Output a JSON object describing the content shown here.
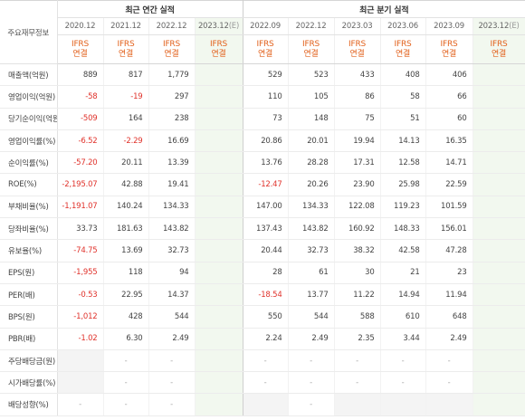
{
  "header": {
    "corner_label": "주요재무정보",
    "annual_group": "최근 연간 실적",
    "quarter_group": "최근 분기 실적",
    "basis_line1": "IFRS",
    "basis_line2": "연결",
    "annual_periods": [
      {
        "label": "2020.12",
        "est": ""
      },
      {
        "label": "2021.12",
        "est": ""
      },
      {
        "label": "2022.12",
        "est": ""
      },
      {
        "label": "2023.12",
        "est": "(E)"
      }
    ],
    "quarter_periods": [
      {
        "label": "2022.09",
        "est": ""
      },
      {
        "label": "2022.12",
        "est": ""
      },
      {
        "label": "2023.03",
        "est": ""
      },
      {
        "label": "2023.06",
        "est": ""
      },
      {
        "label": "2023.09",
        "est": ""
      },
      {
        "label": "2023.12",
        "est": "(E)"
      }
    ]
  },
  "rows": [
    {
      "label": "매출액(억원)",
      "annual": [
        "889",
        "817",
        "1,779",
        ""
      ],
      "quarter": [
        "529",
        "523",
        "433",
        "408",
        "406",
        ""
      ]
    },
    {
      "label": "영업이익(억원)",
      "annual": [
        "-58",
        "-19",
        "297",
        ""
      ],
      "quarter": [
        "110",
        "105",
        "86",
        "58",
        "66",
        ""
      ]
    },
    {
      "label": "당기순이익(억원)",
      "annual": [
        "-509",
        "164",
        "238",
        ""
      ],
      "quarter": [
        "73",
        "148",
        "75",
        "51",
        "60",
        ""
      ]
    },
    {
      "label": "영업이익률(%)",
      "annual": [
        "-6.52",
        "-2.29",
        "16.69",
        ""
      ],
      "quarter": [
        "20.86",
        "20.01",
        "19.94",
        "14.13",
        "16.35",
        ""
      ]
    },
    {
      "label": "순이익률(%)",
      "annual": [
        "-57.20",
        "20.11",
        "13.39",
        ""
      ],
      "quarter": [
        "13.76",
        "28.28",
        "17.31",
        "12.58",
        "14.71",
        ""
      ]
    },
    {
      "label": "ROE(%)",
      "annual": [
        "-2,195.07",
        "42.88",
        "19.41",
        ""
      ],
      "quarter": [
        "-12.47",
        "20.26",
        "23.90",
        "25.98",
        "22.59",
        ""
      ]
    },
    {
      "label": "부채비율(%)",
      "annual": [
        "-1,191.07",
        "140.24",
        "134.33",
        ""
      ],
      "quarter": [
        "147.00",
        "134.33",
        "122.08",
        "119.23",
        "101.59",
        ""
      ]
    },
    {
      "label": "당좌비율(%)",
      "annual": [
        "33.73",
        "181.63",
        "143.82",
        ""
      ],
      "quarter": [
        "137.43",
        "143.82",
        "160.92",
        "148.33",
        "156.01",
        ""
      ]
    },
    {
      "label": "유보율(%)",
      "annual": [
        "-74.75",
        "13.69",
        "32.73",
        ""
      ],
      "quarter": [
        "20.44",
        "32.73",
        "38.32",
        "42.58",
        "47.28",
        ""
      ]
    },
    {
      "label": "EPS(원)",
      "annual": [
        "-1,955",
        "118",
        "94",
        ""
      ],
      "quarter": [
        "28",
        "61",
        "30",
        "21",
        "23",
        ""
      ]
    },
    {
      "label": "PER(배)",
      "annual": [
        "-0.53",
        "22.95",
        "14.37",
        ""
      ],
      "quarter": [
        "-18.54",
        "13.77",
        "11.22",
        "14.94",
        "11.94",
        ""
      ]
    },
    {
      "label": "BPS(원)",
      "annual": [
        "-1,012",
        "428",
        "544",
        ""
      ],
      "quarter": [
        "550",
        "544",
        "588",
        "610",
        "648",
        ""
      ]
    },
    {
      "label": "PBR(배)",
      "annual": [
        "-1.02",
        "6.30",
        "2.49",
        ""
      ],
      "quarter": [
        "2.24",
        "2.49",
        "2.35",
        "3.44",
        "2.49",
        ""
      ]
    },
    {
      "label": "주당배당금(원)",
      "annual": [
        "",
        "-",
        "-",
        ""
      ],
      "quarter": [
        "-",
        "-",
        "-",
        "-",
        "-",
        ""
      ]
    },
    {
      "label": "시가배당률(%)",
      "annual": [
        "",
        "-",
        "-",
        ""
      ],
      "quarter": [
        "-",
        "-",
        "-",
        "-",
        "-",
        ""
      ]
    },
    {
      "label": "배당성향(%)",
      "annual": [
        "-",
        "-",
        "-",
        ""
      ],
      "quarter": [
        "",
        "-",
        "",
        "",
        "",
        ""
      ]
    }
  ],
  "colors": {
    "negative": "#e0322b",
    "basis": "#e2611c",
    "estimate_column_bg": "#f2f8ef",
    "label_shade": "#f4f4f4"
  }
}
